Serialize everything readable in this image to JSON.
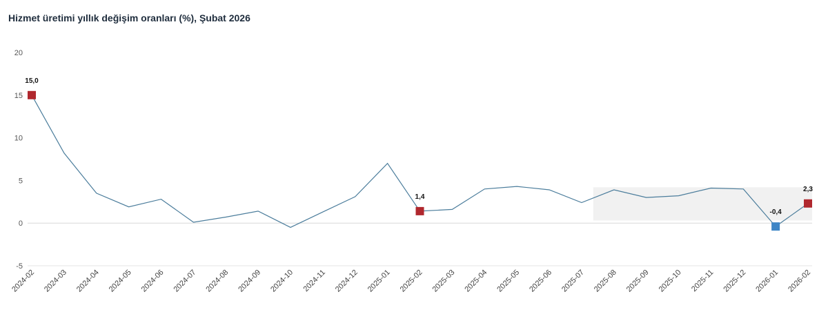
{
  "title": "Hizmet üretimi yıllık değişim oranları (%), Şubat 2026",
  "chart_data": {
    "type": "line",
    "title": "Hizmet üretimi yıllık değişim oranları (%), Şubat 2026",
    "xlabel": "",
    "ylabel": "",
    "ylim": [
      -5,
      20
    ],
    "yticks": [
      20,
      15,
      10,
      5,
      0,
      -5
    ],
    "grid": false,
    "line_color": "#4a7c9b",
    "categories": [
      "2024-02",
      "2024-03",
      "2024-04",
      "2024-05",
      "2024-06",
      "2024-07",
      "2024-08",
      "2024-09",
      "2024-10",
      "2024-11",
      "2024-12",
      "2025-01",
      "2025-02",
      "2025-03",
      "2025-04",
      "2025-05",
      "2025-06",
      "2025-07",
      "2025-08",
      "2025-09",
      "2025-10",
      "2025-11",
      "2025-12",
      "2026-01",
      "2026-02"
    ],
    "series": [
      {
        "values": [
          15.0,
          8.2,
          3.5,
          1.9,
          2.8,
          0.1,
          0.7,
          1.4,
          -0.5,
          1.3,
          3.1,
          7.0,
          1.4,
          1.6,
          4.0,
          4.3,
          3.9,
          2.4,
          3.9,
          3.0,
          3.2,
          4.1,
          4.0,
          -0.4,
          2.3
        ]
      }
    ],
    "annotations": [
      {
        "x": "2024-02",
        "value": 15.0,
        "label": "15,0",
        "marker": "square",
        "color": "#b0282e"
      },
      {
        "x": "2025-02",
        "value": 1.4,
        "label": "1,4",
        "marker": "square",
        "color": "#b0282e"
      },
      {
        "x": "2026-01",
        "value": -0.4,
        "label": "-0,4",
        "marker": "square",
        "color": "#3d85c6"
      },
      {
        "x": "2026-02",
        "value": 2.3,
        "label": "2,3",
        "marker": "square",
        "color": "#b0282e"
      }
    ]
  }
}
